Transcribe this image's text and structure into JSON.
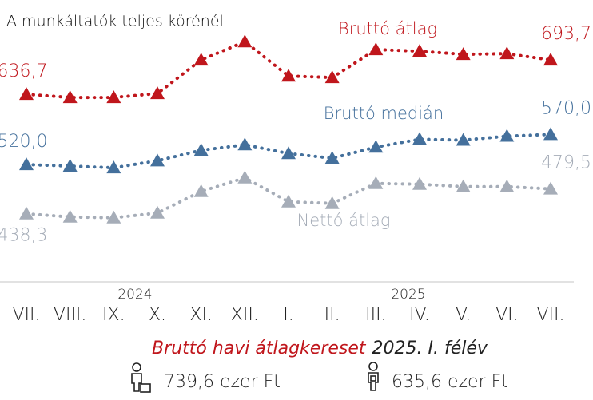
{
  "chart_data": {
    "type": "line",
    "title": "A munkáltatók teljes körénél",
    "categories": [
      "VII.",
      "VIII.",
      "IX.",
      "X.",
      "XI.",
      "XII.",
      "I.",
      "II.",
      "III.",
      "IV.",
      "V.",
      "VI.",
      "VII."
    ],
    "years": [
      "2024",
      "2025"
    ],
    "ylim": [
      300,
      780
    ],
    "series": [
      {
        "name": "Bruttó átlag",
        "color": "#c0161c",
        "values": [
          636.7,
          631.4,
          631.4,
          638.0,
          693.7,
          724.0,
          667.0,
          664.5,
          710.9,
          708.2,
          703.0,
          704.2,
          693.7
        ],
        "value_labels": [
          "636,7",
          null,
          null,
          null,
          null,
          null,
          null,
          null,
          null,
          null,
          null,
          null,
          "693,7"
        ]
      },
      {
        "name": "Bruttó medián",
        "color": "#44709c",
        "values": [
          520.0,
          517.4,
          514.7,
          526.3,
          543.7,
          552.9,
          538.4,
          530.5,
          548.9,
          562.0,
          560.5,
          567.1,
          570.0
        ],
        "value_labels": [
          "520,0",
          null,
          null,
          null,
          null,
          null,
          null,
          null,
          null,
          null,
          null,
          null,
          "570,0"
        ]
      },
      {
        "name": "Nettó átlag",
        "color": "#a6adb8",
        "values": [
          438.3,
          433.0,
          431.6,
          439.6,
          475.4,
          497.9,
          458.2,
          455.5,
          488.6,
          487.3,
          483.3,
          483.3,
          479.5
        ],
        "value_labels": [
          "438,3",
          null,
          null,
          null,
          null,
          null,
          null,
          null,
          null,
          null,
          null,
          null,
          "479,5"
        ]
      }
    ]
  },
  "footer": {
    "title_main": "Bruttó havi átlagkereset",
    "title_period": "2025. I. félév",
    "male": "739,6 ezer Ft",
    "female": "635,6 ezer Ft"
  }
}
